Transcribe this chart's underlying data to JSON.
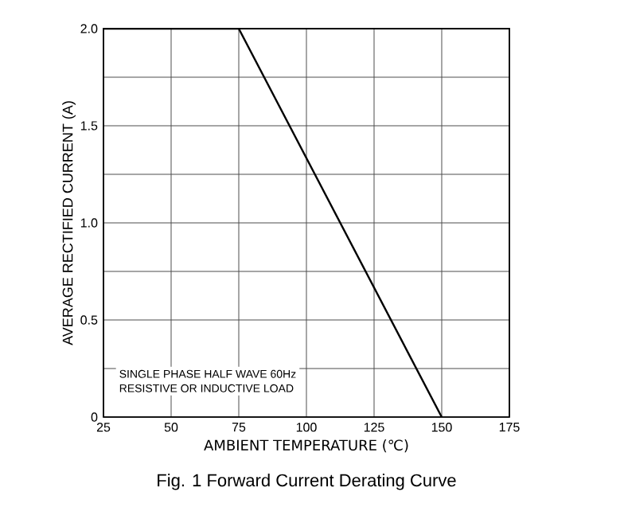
{
  "chart_data": {
    "type": "line",
    "title": "Fig. 1  Forward Current Derating Curve",
    "xlabel": "AMBIENT TEMPERATURE (℃)",
    "ylabel": "AVERAGE RECTIFIED CURRENT (A)",
    "x": [
      25,
      75,
      150
    ],
    "values": [
      2,
      2,
      0
    ],
    "color": "#000000",
    "xlim": [
      25,
      175
    ],
    "xticks": [
      25,
      50,
      75,
      100,
      125,
      150,
      175
    ],
    "ylim": [
      0,
      2
    ],
    "yticks": [
      {
        "value": 0,
        "label": "0"
      },
      {
        "value": 0.25,
        "label": null
      },
      {
        "value": 0.5,
        "label": "0.5"
      },
      {
        "value": 0.75,
        "label": null
      },
      {
        "value": 1,
        "label": "1.0"
      },
      {
        "value": 1.25,
        "label": null
      },
      {
        "value": 1.5,
        "label": "1.5"
      },
      {
        "value": 1.75,
        "label": null
      },
      {
        "value": 2,
        "label": "2.0"
      }
    ],
    "grid": true,
    "marker": "none",
    "line_style": "solid",
    "annotations": [
      "SINGLE PHASE HALF WAVE 60Hz",
      "RESISTIVE OR INDUCTIVE LOAD"
    ]
  }
}
